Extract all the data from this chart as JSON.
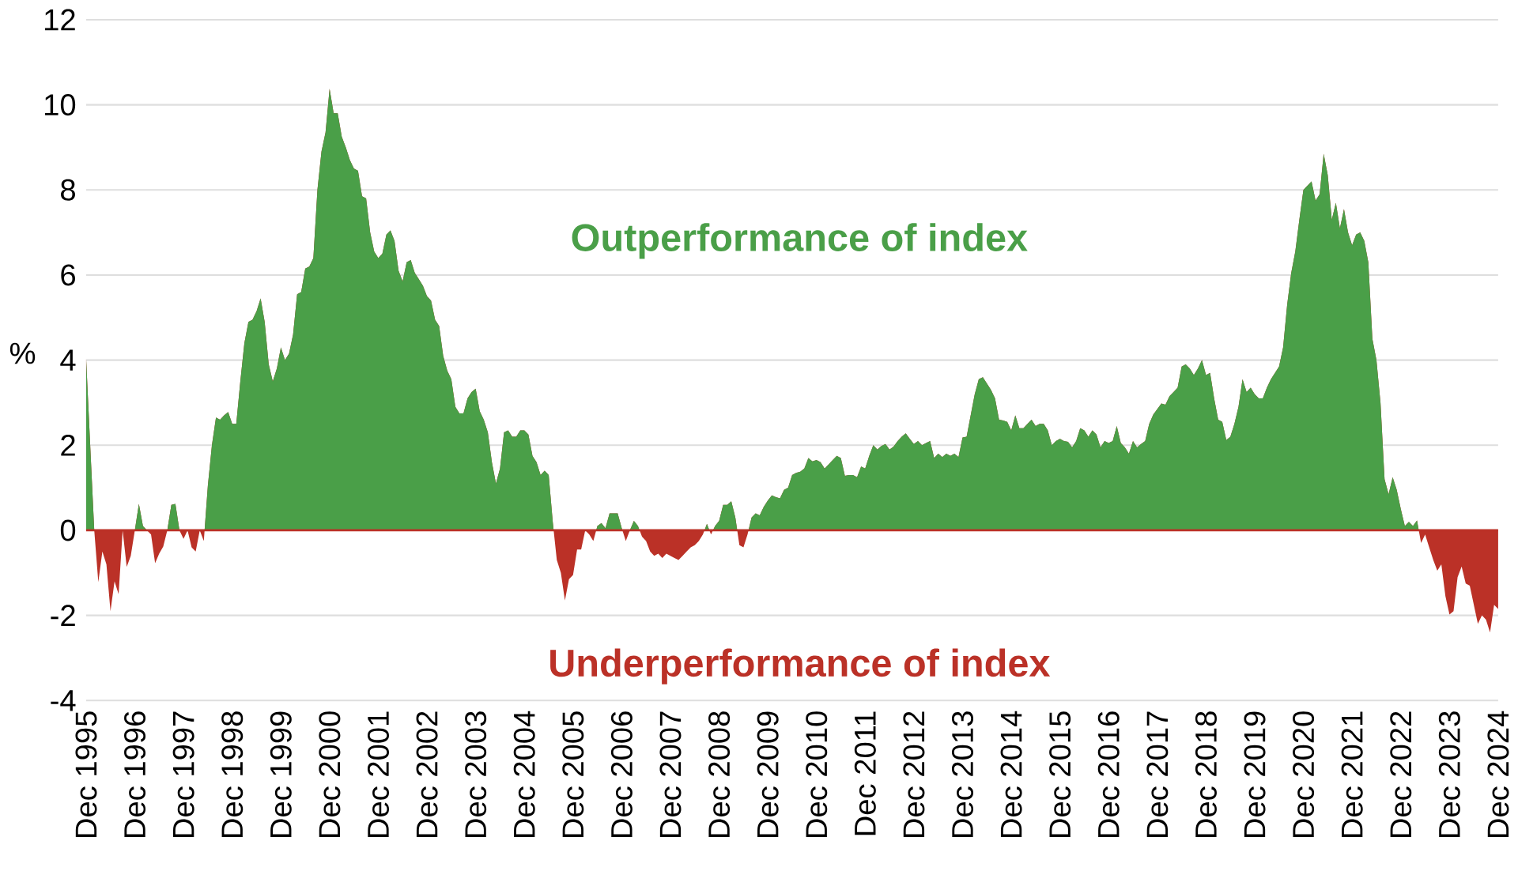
{
  "chart_data": {
    "type": "area",
    "ylabel": "%",
    "x": [
      "1995-12",
      "1996-01",
      "1996-02",
      "1996-03",
      "1996-04",
      "1996-05",
      "1996-06",
      "1996-07",
      "1996-08",
      "1996-09",
      "1996-10",
      "1996-11",
      "1996-12",
      "1997-01",
      "1997-02",
      "1997-03",
      "1997-04",
      "1997-05",
      "1997-06",
      "1997-07",
      "1997-08",
      "1997-09",
      "1997-10",
      "1997-11",
      "1997-12",
      "1998-01",
      "1998-02",
      "1998-03",
      "1998-04",
      "1998-05",
      "1998-06",
      "1998-07",
      "1998-08",
      "1998-09",
      "1998-10",
      "1998-11",
      "1998-12",
      "1999-01",
      "1999-02",
      "1999-03",
      "1999-04",
      "1999-05",
      "1999-06",
      "1999-07",
      "1999-08",
      "1999-09",
      "1999-10",
      "1999-11",
      "1999-12",
      "2000-01",
      "2000-02",
      "2000-03",
      "2000-04",
      "2000-05",
      "2000-06",
      "2000-07",
      "2000-08",
      "2000-09",
      "2000-10",
      "2000-11",
      "2000-12",
      "2001-01",
      "2001-02",
      "2001-03",
      "2001-04",
      "2001-05",
      "2001-06",
      "2001-07",
      "2001-08",
      "2001-09",
      "2001-10",
      "2001-11",
      "2001-12",
      "2002-01",
      "2002-02",
      "2002-03",
      "2002-04",
      "2002-05",
      "2002-06",
      "2002-07",
      "2002-08",
      "2002-09",
      "2002-10",
      "2002-11",
      "2002-12",
      "2003-01",
      "2003-02",
      "2003-03",
      "2003-04",
      "2003-05",
      "2003-06",
      "2003-07",
      "2003-08",
      "2003-09",
      "2003-10",
      "2003-11",
      "2003-12",
      "2004-01",
      "2004-02",
      "2004-03",
      "2004-04",
      "2004-05",
      "2004-06",
      "2004-07",
      "2004-08",
      "2004-09",
      "2004-10",
      "2004-11",
      "2004-12",
      "2005-01",
      "2005-02",
      "2005-03",
      "2005-04",
      "2005-05",
      "2005-06",
      "2005-07",
      "2005-08",
      "2005-09",
      "2005-10",
      "2005-11",
      "2005-12",
      "2006-01",
      "2006-02",
      "2006-03",
      "2006-04",
      "2006-05",
      "2006-06",
      "2006-07",
      "2006-08",
      "2006-09",
      "2006-10",
      "2006-11",
      "2006-12",
      "2007-01",
      "2007-02",
      "2007-03",
      "2007-04",
      "2007-05",
      "2007-06",
      "2007-07",
      "2007-08",
      "2007-09",
      "2007-10",
      "2007-11",
      "2007-12",
      "2008-01",
      "2008-02",
      "2008-03",
      "2008-04",
      "2008-05",
      "2008-06",
      "2008-07",
      "2008-08",
      "2008-09",
      "2008-10",
      "2008-11",
      "2008-12",
      "2009-01",
      "2009-02",
      "2009-03",
      "2009-04",
      "2009-05",
      "2009-06",
      "2009-07",
      "2009-08",
      "2009-09",
      "2009-10",
      "2009-11",
      "2009-12",
      "2010-01",
      "2010-02",
      "2010-03",
      "2010-04",
      "2010-05",
      "2010-06",
      "2010-07",
      "2010-08",
      "2010-09",
      "2010-10",
      "2010-11",
      "2010-12",
      "2011-01",
      "2011-02",
      "2011-03",
      "2011-04",
      "2011-05",
      "2011-06",
      "2011-07",
      "2011-08",
      "2011-09",
      "2011-10",
      "2011-11",
      "2011-12",
      "2012-01",
      "2012-02",
      "2012-03",
      "2012-04",
      "2012-05",
      "2012-06",
      "2012-07",
      "2012-08",
      "2012-09",
      "2012-10",
      "2012-11",
      "2012-12",
      "2013-01",
      "2013-02",
      "2013-03",
      "2013-04",
      "2013-05",
      "2013-06",
      "2013-07",
      "2013-08",
      "2013-09",
      "2013-10",
      "2013-11",
      "2013-12",
      "2014-01",
      "2014-02",
      "2014-03",
      "2014-04",
      "2014-05",
      "2014-06",
      "2014-07",
      "2014-08",
      "2014-09",
      "2014-10",
      "2014-11",
      "2014-12",
      "2015-01",
      "2015-02",
      "2015-03",
      "2015-04",
      "2015-05",
      "2015-06",
      "2015-07",
      "2015-08",
      "2015-09",
      "2015-10",
      "2015-11",
      "2015-12",
      "2016-01",
      "2016-02",
      "2016-03",
      "2016-04",
      "2016-05",
      "2016-06",
      "2016-07",
      "2016-08",
      "2016-09",
      "2016-10",
      "2016-11",
      "2016-12",
      "2017-01",
      "2017-02",
      "2017-03",
      "2017-04",
      "2017-05",
      "2017-06",
      "2017-07",
      "2017-08",
      "2017-09",
      "2017-10",
      "2017-11",
      "2017-12",
      "2018-01",
      "2018-02",
      "2018-03",
      "2018-04",
      "2018-05",
      "2018-06",
      "2018-07",
      "2018-08",
      "2018-09",
      "2018-10",
      "2018-11",
      "2018-12",
      "2019-01",
      "2019-02",
      "2019-03",
      "2019-04",
      "2019-05",
      "2019-06",
      "2019-07",
      "2019-08",
      "2019-09",
      "2019-10",
      "2019-11",
      "2019-12",
      "2020-01",
      "2020-02",
      "2020-03",
      "2020-04",
      "2020-05",
      "2020-06",
      "2020-07",
      "2020-08",
      "2020-09",
      "2020-10",
      "2020-11",
      "2020-12",
      "2021-01",
      "2021-02",
      "2021-03",
      "2021-04",
      "2021-05",
      "2021-06",
      "2021-07",
      "2021-08",
      "2021-09",
      "2021-10",
      "2021-11",
      "2021-12",
      "2022-01",
      "2022-02",
      "2022-03",
      "2022-04",
      "2022-05",
      "2022-06",
      "2022-07",
      "2022-08",
      "2022-09",
      "2022-10",
      "2022-11",
      "2022-12",
      "2023-01",
      "2023-02",
      "2023-03",
      "2023-04",
      "2023-05",
      "2023-06",
      "2023-07",
      "2023-08",
      "2023-09",
      "2023-10",
      "2023-11",
      "2023-12",
      "2024-01",
      "2024-02",
      "2024-03",
      "2024-04",
      "2024-05",
      "2024-06",
      "2024-07",
      "2024-08",
      "2024-09",
      "2024-10",
      "2024-11",
      "2024-12"
    ],
    "series": [
      {
        "color": "#4a9f48",
        "values": [
          4.03,
          2.0,
          0,
          -1.22,
          -0.5,
          -0.8,
          -1.9,
          -1.2,
          -1.5,
          0,
          -0.86,
          -0.6,
          0,
          0.62,
          0.1,
          0,
          -0.1,
          -0.77,
          -0.55,
          -0.38,
          0,
          0.6,
          0.62,
          0,
          -0.2,
          0,
          -0.4,
          -0.5,
          0,
          -0.25,
          1.05,
          2.0,
          2.65,
          2.6,
          2.7,
          2.78,
          2.5,
          2.5,
          3.5,
          4.4,
          4.9,
          4.95,
          5.15,
          5.45,
          4.9,
          3.9,
          3.5,
          3.8,
          4.3,
          4.0,
          4.15,
          4.6,
          5.55,
          5.6,
          6.15,
          6.2,
          6.4,
          8.0,
          8.9,
          9.35,
          10.38,
          9.8,
          9.8,
          9.25,
          9.0,
          8.7,
          8.5,
          8.45,
          7.85,
          7.8,
          7.0,
          6.55,
          6.4,
          6.5,
          6.95,
          7.05,
          6.8,
          6.1,
          5.85,
          6.3,
          6.35,
          6.05,
          5.9,
          5.75,
          5.5,
          5.4,
          4.95,
          4.8,
          4.1,
          3.75,
          3.55,
          2.9,
          2.75,
          2.75,
          3.1,
          3.25,
          3.33,
          2.8,
          2.6,
          2.3,
          1.6,
          1.1,
          1.45,
          2.3,
          2.35,
          2.2,
          2.2,
          2.35,
          2.35,
          2.25,
          1.75,
          1.6,
          1.3,
          1.4,
          1.3,
          0.2,
          -0.7,
          -1.0,
          -1.65,
          -1.15,
          -1.05,
          -0.45,
          -0.45,
          0,
          -0.1,
          -0.25,
          0.1,
          0.17,
          0.05,
          0.4,
          0.4,
          0.4,
          0.05,
          -0.25,
          0,
          0.22,
          0.1,
          -0.15,
          -0.25,
          -0.5,
          -0.6,
          -0.55,
          -0.65,
          -0.55,
          -0.6,
          -0.65,
          -0.7,
          -0.6,
          -0.5,
          -0.4,
          -0.35,
          -0.25,
          -0.1,
          0.15,
          -0.1,
          0.1,
          0.22,
          0.6,
          0.6,
          0.68,
          0.3,
          -0.35,
          -0.4,
          -0.1,
          0.3,
          0.4,
          0.35,
          0.55,
          0.7,
          0.82,
          0.78,
          0.75,
          0.95,
          1.0,
          1.3,
          1.35,
          1.38,
          1.45,
          1.7,
          1.62,
          1.65,
          1.6,
          1.45,
          1.55,
          1.65,
          1.75,
          1.7,
          1.28,
          1.3,
          1.3,
          1.25,
          1.5,
          1.45,
          1.75,
          2.0,
          1.9,
          1.98,
          2.03,
          1.9,
          1.97,
          2.1,
          2.2,
          2.28,
          2.15,
          2.03,
          2.1,
          2.0,
          2.05,
          2.1,
          1.7,
          1.8,
          1.72,
          1.8,
          1.75,
          1.8,
          1.72,
          2.18,
          2.2,
          2.7,
          3.2,
          3.55,
          3.6,
          3.45,
          3.3,
          3.1,
          2.6,
          2.58,
          2.55,
          2.35,
          2.7,
          2.4,
          2.4,
          2.5,
          2.6,
          2.45,
          2.5,
          2.5,
          2.35,
          2.0,
          2.1,
          2.15,
          2.1,
          2.08,
          1.95,
          2.1,
          2.4,
          2.35,
          2.2,
          2.35,
          2.25,
          1.95,
          2.1,
          2.05,
          2.1,
          2.45,
          2.05,
          1.95,
          1.8,
          2.1,
          1.95,
          2.03,
          2.1,
          2.5,
          2.72,
          2.85,
          2.98,
          2.95,
          3.15,
          3.25,
          3.35,
          3.85,
          3.9,
          3.8,
          3.65,
          3.8,
          4.0,
          3.65,
          3.7,
          3.1,
          2.6,
          2.55,
          2.12,
          2.2,
          2.5,
          2.9,
          3.55,
          3.25,
          3.35,
          3.2,
          3.1,
          3.1,
          3.35,
          3.55,
          3.7,
          3.85,
          4.3,
          5.3,
          6.05,
          6.55,
          7.3,
          8.0,
          8.1,
          8.2,
          7.75,
          7.9,
          8.85,
          8.35,
          7.3,
          7.7,
          7.1,
          7.55,
          7.0,
          6.7,
          6.95,
          7.0,
          6.8,
          6.3,
          4.5,
          4.0,
          3.0,
          1.2,
          0.85,
          1.25,
          0.95,
          0.5,
          0.1,
          0.2,
          0.1,
          0.23,
          -0.3,
          -0.1,
          -0.4,
          -0.7,
          -0.95,
          -0.8,
          -1.55,
          -1.98,
          -1.9,
          -1.1,
          -0.85,
          -1.25,
          -1.3,
          -1.75,
          -2.2,
          -2.0,
          -2.1,
          -2.4,
          -1.75,
          -1.85
        ]
      }
    ],
    "xlim": [
      "1995-12",
      "2024-12"
    ],
    "xticks": [
      {
        "value": "1995-12",
        "label": "Dec 1995"
      },
      {
        "value": "1996-12",
        "label": "Dec 1996"
      },
      {
        "value": "1997-12",
        "label": "Dec 1997"
      },
      {
        "value": "1998-12",
        "label": "Dec 1998"
      },
      {
        "value": "1999-12",
        "label": "Dec 1999"
      },
      {
        "value": "2000-12",
        "label": "Dec 2000"
      },
      {
        "value": "2001-12",
        "label": "Dec 2001"
      },
      {
        "value": "2002-12",
        "label": "Dec 2002"
      },
      {
        "value": "2003-12",
        "label": "Dec 2003"
      },
      {
        "value": "2004-12",
        "label": "Dec 2004"
      },
      {
        "value": "2005-12",
        "label": "Dec 2005"
      },
      {
        "value": "2006-12",
        "label": "Dec 2006"
      },
      {
        "value": "2007-12",
        "label": "Dec 2007"
      },
      {
        "value": "2008-12",
        "label": "Dec 2008"
      },
      {
        "value": "2009-12",
        "label": "Dec 2009"
      },
      {
        "value": "2010-12",
        "label": "Dec 2010"
      },
      {
        "value": "2011-12",
        "label": "Dec 2011"
      },
      {
        "value": "2012-12",
        "label": "Dec 2012"
      },
      {
        "value": "2013-12",
        "label": "Dec 2013"
      },
      {
        "value": "2014-12",
        "label": "Dec 2014"
      },
      {
        "value": "2015-12",
        "label": "Dec 2015"
      },
      {
        "value": "2016-12",
        "label": "Dec 2016"
      },
      {
        "value": "2017-12",
        "label": "Dec 2017"
      },
      {
        "value": "2018-12",
        "label": "Dec 2018"
      },
      {
        "value": "2019-12",
        "label": "Dec 2019"
      },
      {
        "value": "2020-12",
        "label": "Dec 2020"
      },
      {
        "value": "2021-12",
        "label": "Dec 2021"
      },
      {
        "value": "2022-12",
        "label": "Dec 2022"
      },
      {
        "value": "2023-12",
        "label": "Dec 2023"
      },
      {
        "value": "2024-12",
        "label": "Dec 2024"
      }
    ],
    "ylim": [
      -4,
      12
    ],
    "yticks": [
      -4,
      -2,
      0,
      2,
      4,
      6,
      8,
      10,
      12
    ],
    "grid": "y",
    "ref_lines": [
      {
        "axis": "y",
        "value": 0,
        "color": "#bb3127"
      }
    ],
    "annotations": [
      "Outperformance of index",
      "Underperformance of index"
    ]
  }
}
